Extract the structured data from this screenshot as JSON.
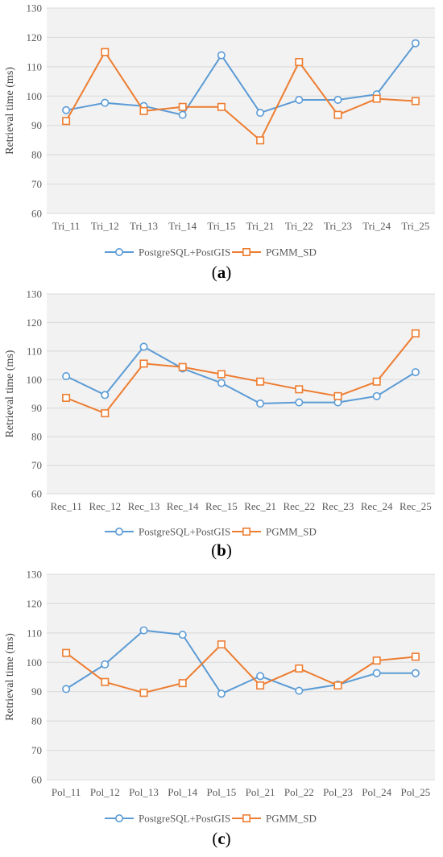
{
  "chart_data": [
    {
      "type": "line",
      "panel_label": "a",
      "ylabel": "Retrieval time (ms)",
      "ylim": [
        60,
        130
      ],
      "yticks": [
        60,
        70,
        80,
        90,
        100,
        110,
        120,
        130
      ],
      "grid": "horizontal",
      "legend": "bottom",
      "categories": [
        "Tri_11",
        "Tri_12",
        "Tri_13",
        "Tri_14",
        "Tri_15",
        "Tri_21",
        "Tri_22",
        "Tri_23",
        "Tri_24",
        "Tri_25"
      ],
      "series": [
        {
          "name": "PostgreSQL+PostGIS",
          "color": "#5B9BD5",
          "marker": "circle",
          "values": [
            95.2,
            97.7,
            96.6,
            93.6,
            113.9,
            94.3,
            98.7,
            98.7,
            100.6,
            118.0
          ]
        },
        {
          "name": "PGMM_SD",
          "color": "#ED7D31",
          "marker": "square",
          "values": [
            91.5,
            115.0,
            94.9,
            96.3,
            96.3,
            84.9,
            111.6,
            93.6,
            99.1,
            98.3
          ]
        }
      ]
    },
    {
      "type": "line",
      "panel_label": "b",
      "ylabel": "Retrieval time (ms)",
      "ylim": [
        60,
        130
      ],
      "yticks": [
        60,
        70,
        80,
        90,
        100,
        110,
        120,
        130
      ],
      "grid": "horizontal",
      "legend": "bottom",
      "categories": [
        "Rec_11",
        "Rec_12",
        "Rec_13",
        "Rec_14",
        "Rec_15",
        "Rec_21",
        "Rec_22",
        "Rec_23",
        "Rec_24",
        "Rec_25"
      ],
      "series": [
        {
          "name": "PostgreSQL+PostGIS",
          "color": "#5B9BD5",
          "marker": "circle",
          "values": [
            101.2,
            94.6,
            111.5,
            103.9,
            98.8,
            91.6,
            92.0,
            92.0,
            94.2,
            102.6
          ]
        },
        {
          "name": "PGMM_SD",
          "color": "#ED7D31",
          "marker": "square",
          "values": [
            93.6,
            88.2,
            105.6,
            104.4,
            101.9,
            99.3,
            96.6,
            94.2,
            99.3,
            116.2
          ]
        }
      ]
    },
    {
      "type": "line",
      "panel_label": "c",
      "ylabel": "Retrieval time (ms)",
      "ylim": [
        60,
        130
      ],
      "yticks": [
        60,
        70,
        80,
        90,
        100,
        110,
        120,
        130
      ],
      "grid": "horizontal",
      "legend": "bottom",
      "categories": [
        "Pol_11",
        "Pol_12",
        "Pol_13",
        "Pol_14",
        "Pol_15",
        "Pol_21",
        "Pol_22",
        "Pol_23",
        "Pol_24",
        "Pol_25"
      ],
      "series": [
        {
          "name": "PostgreSQL+PostGIS",
          "color": "#5B9BD5",
          "marker": "circle",
          "values": [
            90.9,
            99.3,
            110.9,
            109.4,
            89.3,
            95.3,
            90.3,
            92.4,
            96.3,
            96.3
          ]
        },
        {
          "name": "PGMM_SD",
          "color": "#ED7D31",
          "marker": "square",
          "values": [
            103.2,
            93.3,
            89.6,
            92.9,
            106.1,
            92.1,
            97.9,
            92.1,
            100.6,
            101.9
          ]
        }
      ]
    }
  ],
  "colors": {
    "plot_background": "#F2F2F2",
    "gridline": "#D9D9D9",
    "axis_text": "#595959"
  }
}
